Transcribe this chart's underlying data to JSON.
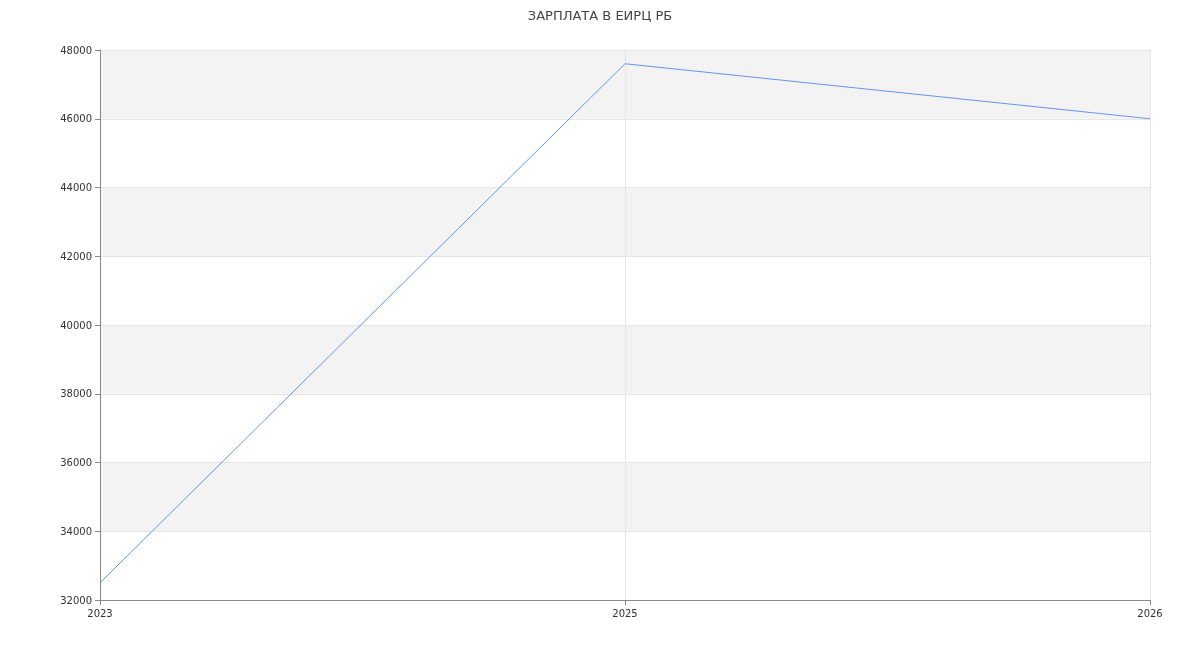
{
  "chart_data": {
    "type": "line",
    "title": "ЗАРПЛАТА В ЕИРЦ РБ",
    "categories": [
      "2023",
      "2025",
      "2026"
    ],
    "series": [
      {
        "color": "#6495ed",
        "values": [
          32500,
          47600,
          46000
        ]
      }
    ],
    "ylim": [
      32000,
      48000
    ],
    "yticks": [
      32000,
      34000,
      36000,
      38000,
      40000,
      42000,
      44000,
      46000,
      48000
    ],
    "grid": true,
    "marker": "none",
    "line_style": "solid"
  }
}
